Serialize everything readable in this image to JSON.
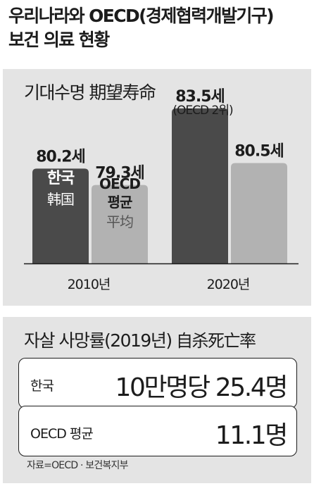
{
  "title": {
    "line1": "우리나라와 OECD(경제협력개발기구)",
    "line2": "보건 의료 현황"
  },
  "colors": {
    "korea": "#4a4a4a",
    "oecd": "#b2b2b2",
    "panel": "#e4e4e4",
    "text": "#1c1c1c"
  },
  "chart_data": {
    "type": "bar",
    "title": "기대수명 期望寿命",
    "categories": [
      "2010년",
      "2020년"
    ],
    "series": [
      {
        "name": "한국",
        "name_sub": "韩国",
        "values": [
          80.2,
          83.5
        ],
        "value_labels": [
          "80.2세",
          "83.5세"
        ]
      },
      {
        "name": "OECD 평균",
        "name_sub": "平均",
        "values": [
          79.3,
          80.5
        ],
        "value_labels": [
          "79.3세",
          "80.5세"
        ]
      }
    ],
    "annotations": [
      {
        "category": "2020년",
        "series": "한국",
        "text": "(OECD 2위)"
      }
    ]
  },
  "suicide": {
    "title": "자살 사망률(2019년)",
    "title_han": "自杀死亡率",
    "rows": [
      {
        "label": "한국",
        "value": "10만명당 25.4명"
      },
      {
        "label": "OECD 평균",
        "value": "11.1명"
      }
    ],
    "source": "자료=OECD · 보건복지부"
  }
}
